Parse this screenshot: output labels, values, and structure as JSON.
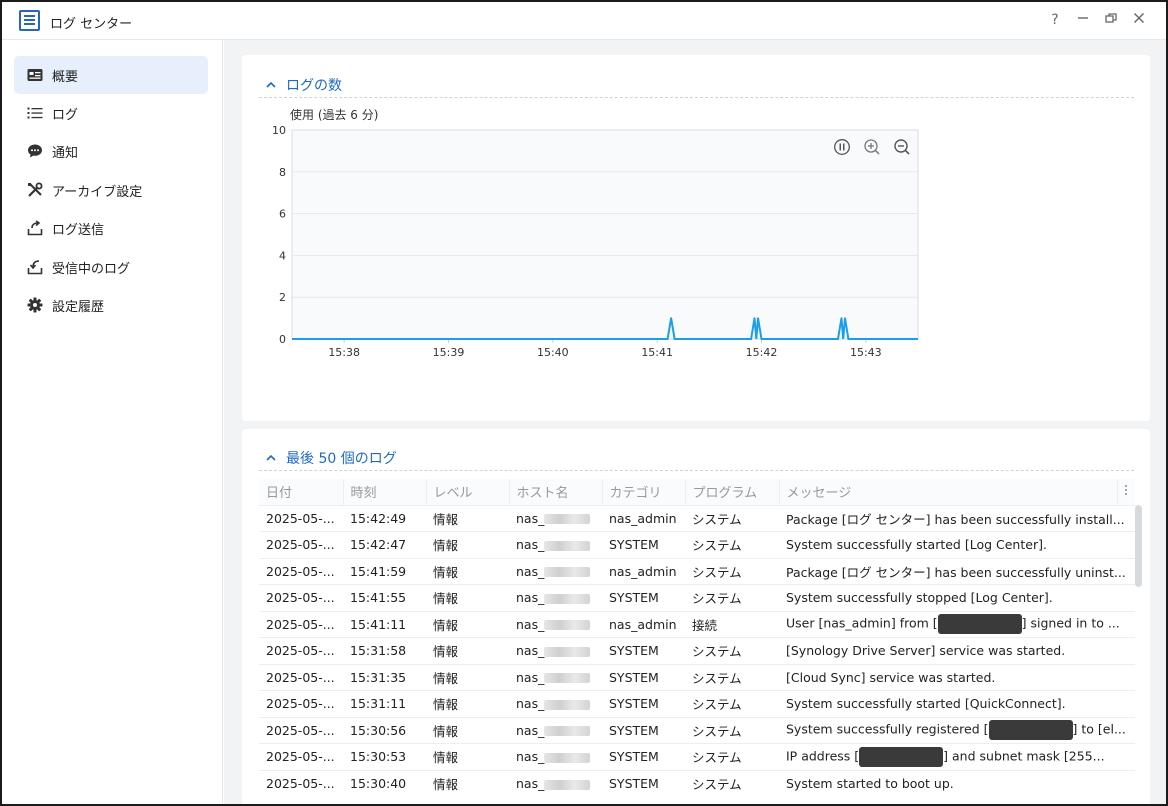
{
  "app": {
    "title": "ログ センター",
    "controls": {
      "help": "?",
      "minimize": "—",
      "restore": "❐",
      "close": "✕"
    }
  },
  "sidebar": {
    "items": [
      {
        "label": "概要",
        "icon": "overview-icon",
        "active": true
      },
      {
        "label": "ログ",
        "icon": "list-icon",
        "active": false
      },
      {
        "label": "通知",
        "icon": "chat-bubble-icon",
        "active": false
      },
      {
        "label": "アーカイブ設定",
        "icon": "tools-icon",
        "active": false
      },
      {
        "label": "ログ送信",
        "icon": "upload-icon",
        "active": false
      },
      {
        "label": "受信中のログ",
        "icon": "download-icon",
        "active": false
      },
      {
        "label": "設定履歴",
        "icon": "gear-icon",
        "active": false
      }
    ]
  },
  "count_section": {
    "title": "ログの数"
  },
  "chart_data": {
    "type": "line",
    "ylabel": "使用 (過去 6 分)",
    "ylim": [
      0,
      10
    ],
    "yticks": [
      "10",
      "8",
      "6",
      "4",
      "2",
      "0"
    ],
    "xticks": [
      "15:38",
      "15:39",
      "15:40",
      "15:41",
      "15:42",
      "15:43"
    ],
    "color": "#1a9fe8",
    "series": [
      {
        "points": [
          [
            "15:37:30",
            0
          ],
          [
            "15:41:06",
            0
          ],
          [
            "15:41:08",
            1
          ],
          [
            "15:41:10",
            0
          ],
          [
            "15:41:54",
            0
          ],
          [
            "15:41:56",
            1
          ],
          [
            "15:41:57",
            0
          ],
          [
            "15:41:58",
            1
          ],
          [
            "15:42:00",
            0
          ],
          [
            "15:42:44",
            0
          ],
          [
            "15:42:46",
            1
          ],
          [
            "15:42:47",
            0
          ],
          [
            "15:42:48",
            1
          ],
          [
            "15:42:50",
            0
          ],
          [
            "15:43:30",
            0
          ]
        ]
      }
    ],
    "controls": [
      "pause-icon",
      "zoom-in-icon",
      "zoom-out-icon"
    ]
  },
  "log_section": {
    "title": "最後 50 個のログ",
    "columns": [
      "日付",
      "時刻",
      "レベル",
      "ホスト名",
      "カテゴリ",
      "プログラム",
      "メッセージ"
    ],
    "rows": [
      {
        "date": "2025-05-...",
        "time": "15:42:49",
        "level": "情報",
        "host": "nas_",
        "category": "nas_admin",
        "program": "システム",
        "msg_pre": "Package [ログ センター] has been successfully install...",
        "redacted": false,
        "msg_post": ""
      },
      {
        "date": "2025-05-...",
        "time": "15:42:47",
        "level": "情報",
        "host": "nas_",
        "category": "SYSTEM",
        "program": "システム",
        "msg_pre": "System successfully started [Log Center].",
        "redacted": false,
        "msg_post": ""
      },
      {
        "date": "2025-05-...",
        "time": "15:41:59",
        "level": "情報",
        "host": "nas_",
        "category": "nas_admin",
        "program": "システム",
        "msg_pre": "Package [ログ センター] has been successfully uninst...",
        "redacted": false,
        "msg_post": ""
      },
      {
        "date": "2025-05-...",
        "time": "15:41:55",
        "level": "情報",
        "host": "nas_",
        "category": "SYSTEM",
        "program": "システム",
        "msg_pre": "System successfully stopped [Log Center].",
        "redacted": false,
        "msg_post": ""
      },
      {
        "date": "2025-05-...",
        "time": "15:41:11",
        "level": "情報",
        "host": "nas_",
        "category": "nas_admin",
        "program": "接続",
        "msg_pre": "User [nas_admin] from [",
        "redacted": true,
        "msg_post": "] signed in to ..."
      },
      {
        "date": "2025-05-...",
        "time": "15:31:58",
        "level": "情報",
        "host": "nas_",
        "category": "SYSTEM",
        "program": "システム",
        "msg_pre": "[Synology Drive Server] service was started.",
        "redacted": false,
        "msg_post": ""
      },
      {
        "date": "2025-05-...",
        "time": "15:31:35",
        "level": "情報",
        "host": "nas_",
        "category": "SYSTEM",
        "program": "システム",
        "msg_pre": "[Cloud Sync] service was started.",
        "redacted": false,
        "msg_post": ""
      },
      {
        "date": "2025-05-...",
        "time": "15:31:11",
        "level": "情報",
        "host": "nas_",
        "category": "SYSTEM",
        "program": "システム",
        "msg_pre": "System successfully started [QuickConnect].",
        "redacted": false,
        "msg_post": ""
      },
      {
        "date": "2025-05-...",
        "time": "15:30:56",
        "level": "情報",
        "host": "nas_",
        "category": "SYSTEM",
        "program": "システム",
        "msg_pre": "System successfully registered [",
        "redacted": true,
        "msg_post": "] to [el..."
      },
      {
        "date": "2025-05-...",
        "time": "15:30:53",
        "level": "情報",
        "host": "nas_",
        "category": "SYSTEM",
        "program": "システム",
        "msg_pre": "IP address [",
        "redacted": true,
        "msg_post": "] and subnet mask [255..."
      },
      {
        "date": "2025-05-...",
        "time": "15:30:40",
        "level": "情報",
        "host": "nas_",
        "category": "SYSTEM",
        "program": "システム",
        "msg_pre": "System started to boot up.",
        "redacted": false,
        "msg_post": ""
      }
    ]
  }
}
